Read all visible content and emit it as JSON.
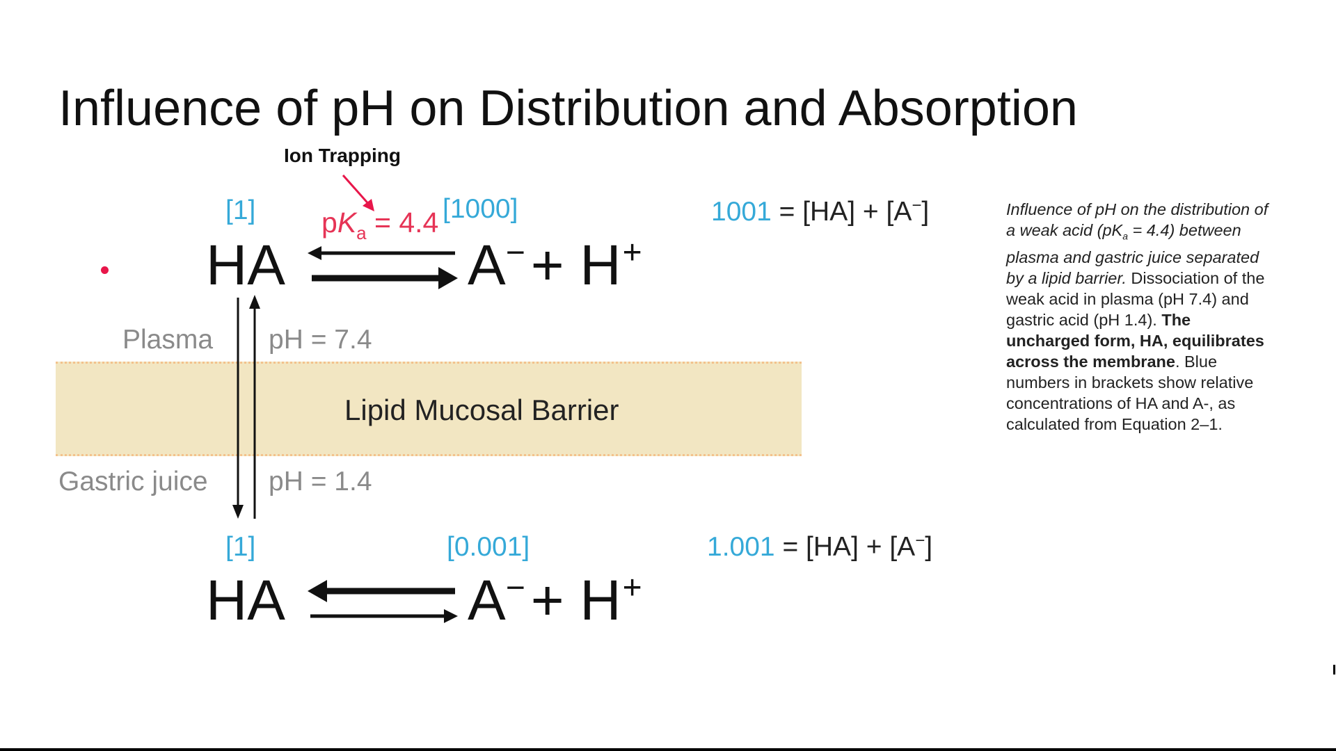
{
  "slide": {
    "title": "Influence of pH on Distribution and Absorption"
  },
  "annotation": {
    "ion_trapping": "Ion Trapping"
  },
  "plasma": {
    "label": "Plasma",
    "ph": "pH = 7.4",
    "ha_conc": "[1]",
    "a_conc": "[1000]",
    "ha": "HA",
    "a_base": "A",
    "a_charge": "−",
    "plus": "+ H",
    "h_charge": "+",
    "pka_p": "p",
    "pka_k": "K",
    "pka_sub": "a",
    "pka_value": " = 4.4",
    "sum_value": "1001",
    "sum_eq_left": " = [HA] + [A",
    "sum_eq_sup": "−",
    "sum_eq_right": "]"
  },
  "barrier": {
    "label": "Lipid Mucosal Barrier"
  },
  "gastric": {
    "label": "Gastric juice",
    "ph": "pH = 1.4",
    "ha_conc": "[1]",
    "a_conc": "[0.001]",
    "ha": "HA",
    "a_base": "A",
    "a_charge": "−",
    "plus": "+ H",
    "h_charge": "+",
    "sum_value": "1.001",
    "sum_eq_left": " = [HA] + [A",
    "sum_eq_sup": "−",
    "sum_eq_right": "]"
  },
  "caption": {
    "italic_1": "Influence of pH on the distribution of a weak acid (pK",
    "italic_sub": "a",
    "italic_2": " = 4.4) between plasma and gastric juice separated by a lipid barrier.",
    "plain_1": " Dissociation of the weak acid in plasma (pH 7.4) and gastric acid (pH 1.4). ",
    "bold_1": "The uncharged form, HA, equilibrates across the membrane",
    "plain_2": ". Blue numbers in brackets show relative concentrations of HA and A-, as calculated from Equation 2–1."
  },
  "colors": {
    "blue_numbers": "#35a9d8",
    "pka_red": "#e63456",
    "barrier_fill": "#f2e6c2",
    "gray_labels": "#8a8a8a"
  }
}
